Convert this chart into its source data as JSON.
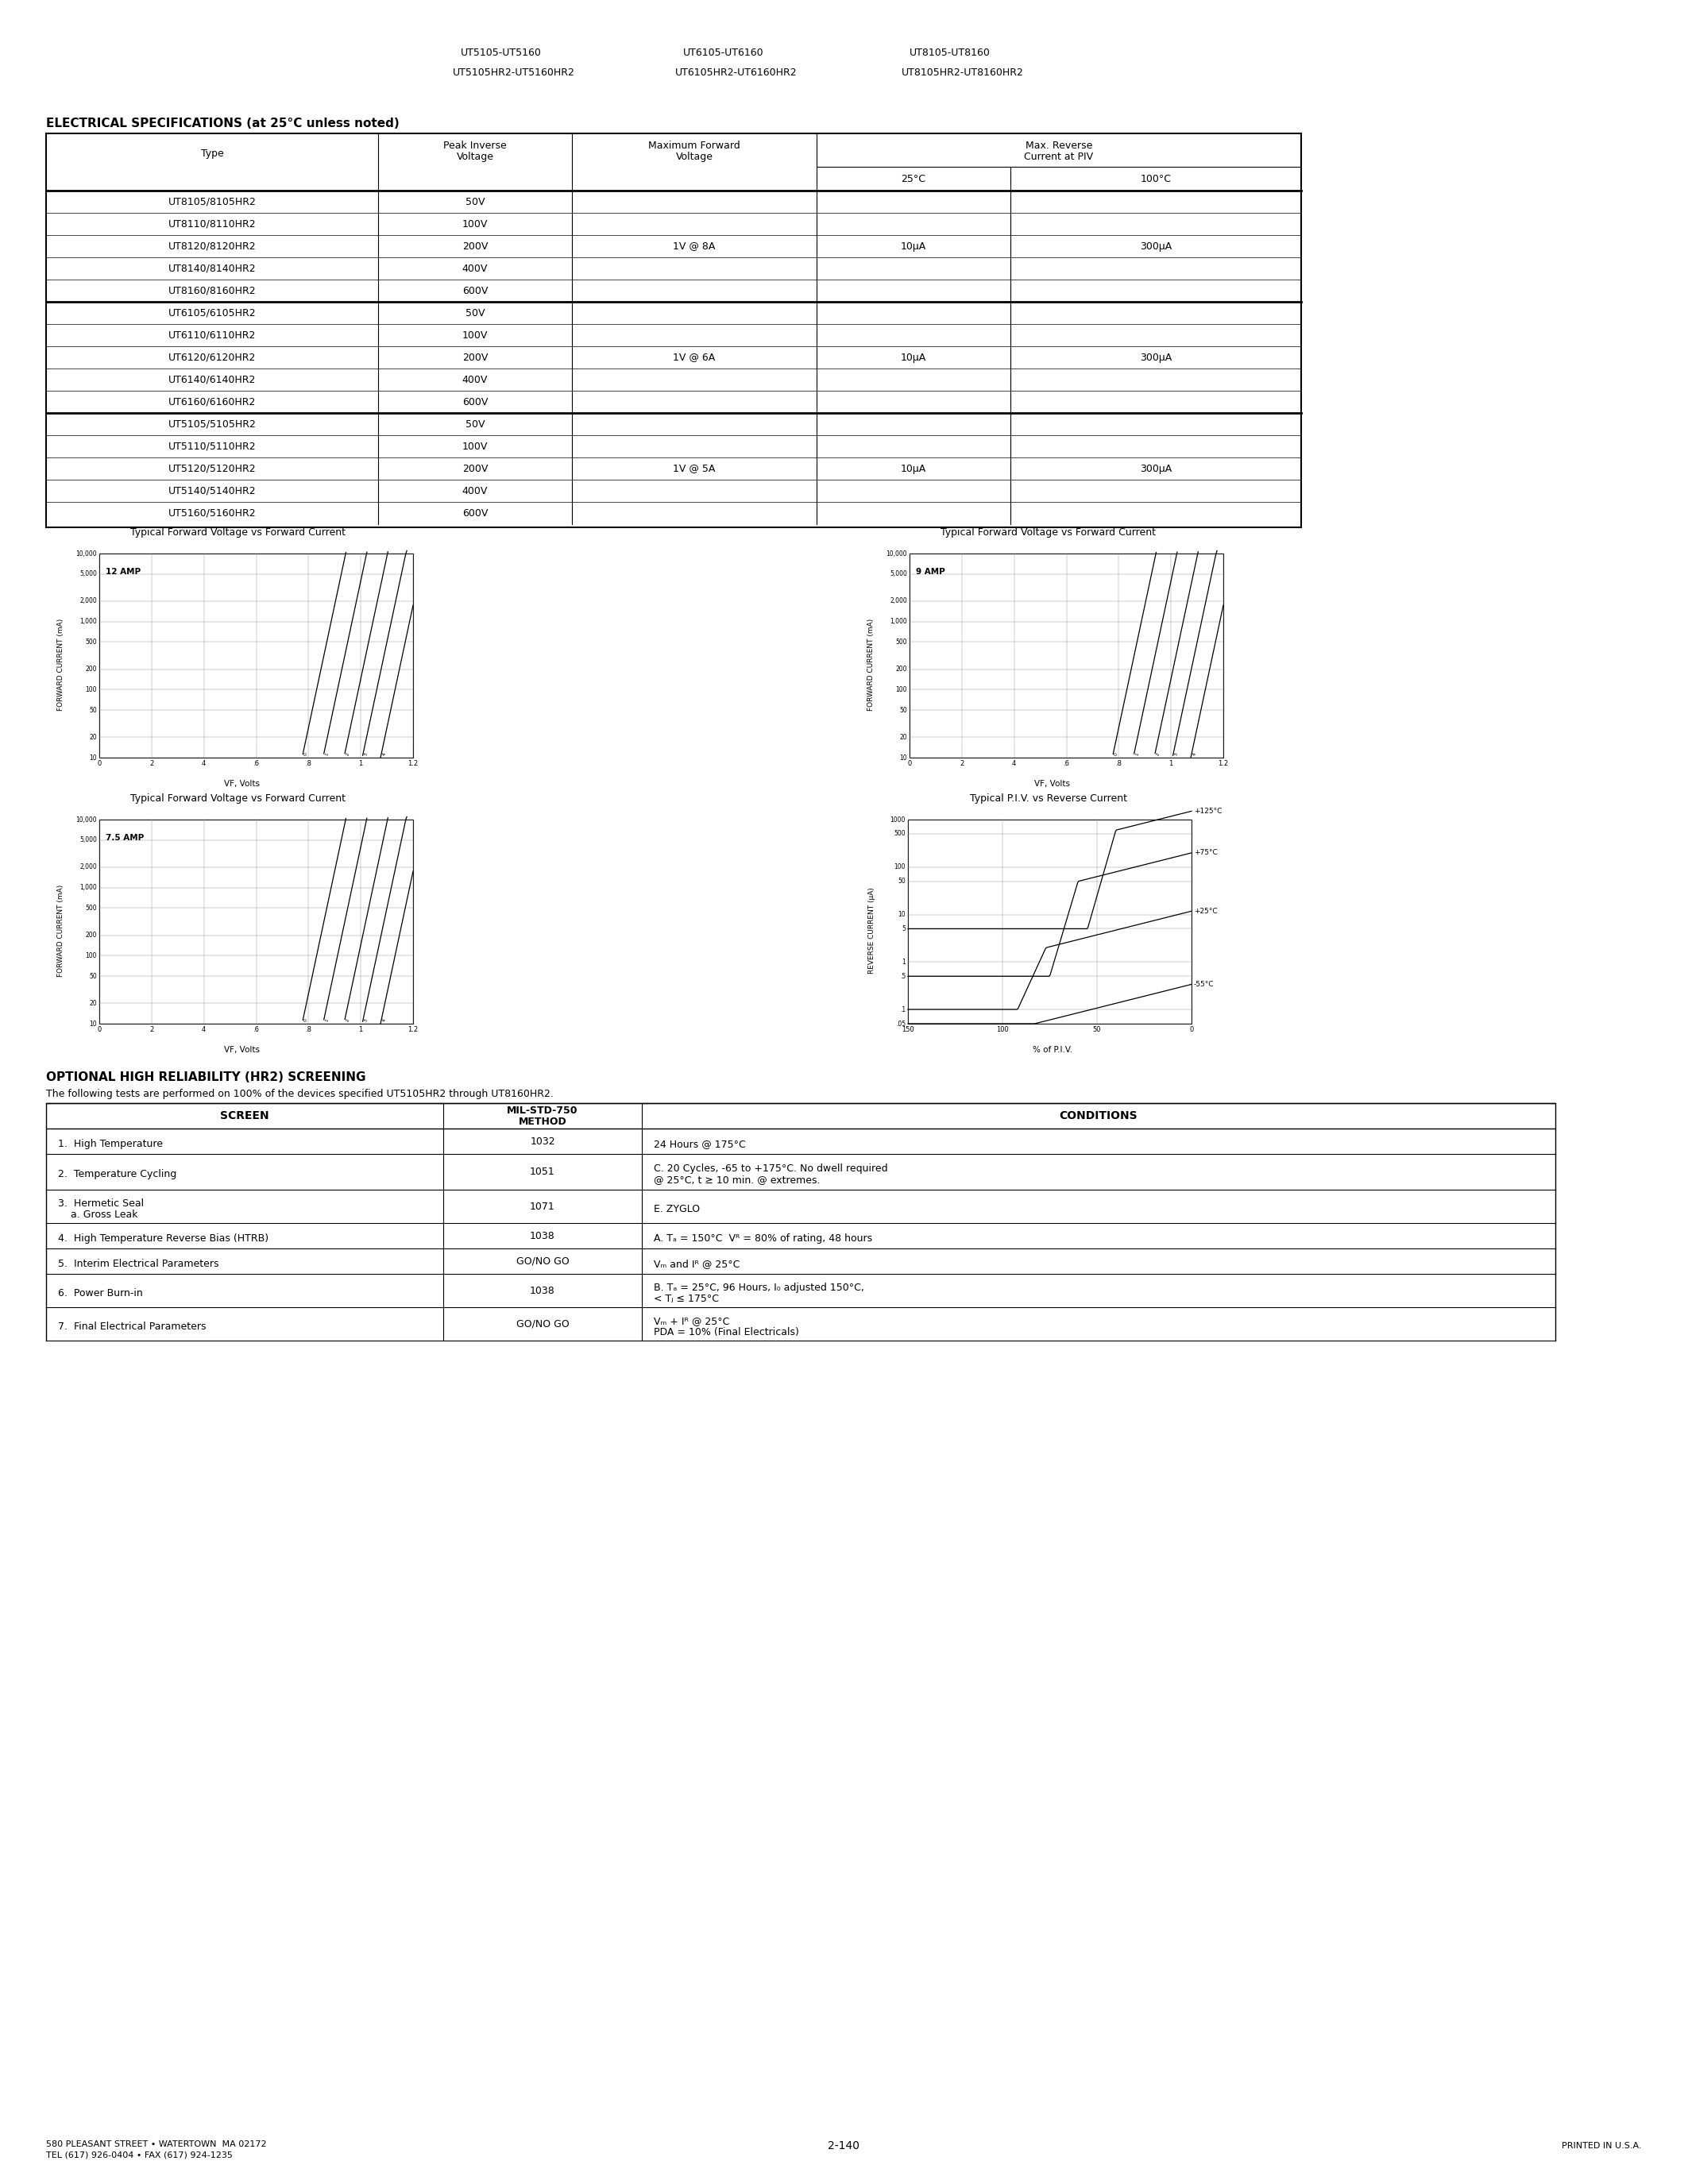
{
  "page_bg": "#ffffff",
  "header_items": [
    [
      "UT5105-UT5160",
      "UT6105-UT6160",
      "UT8105-UT8160"
    ],
    [
      "UT5105HR2-UT5160HR2",
      "UT6105HR2-UT6160HR2",
      "UT8105HR2-UT8160HR2"
    ]
  ],
  "elec_spec_title": "ELECTRICAL SPECIFICATIONS (at 25°C unless noted)",
  "table1_rows_group1": [
    [
      "UT8105/8105HR2",
      "50V"
    ],
    [
      "UT8110/8110HR2",
      "100V"
    ],
    [
      "UT8120/8120HR2",
      "200V"
    ],
    [
      "UT8140/8140HR2",
      "400V"
    ],
    [
      "UT8160/8160HR2",
      "600V"
    ]
  ],
  "table1_group1_fwd": "1V @ 8A",
  "table1_group1_25c": "10μA",
  "table1_group1_100c": "300μA",
  "table1_rows_group2": [
    [
      "UT6105/6105HR2",
      "50V"
    ],
    [
      "UT6110/6110HR2",
      "100V"
    ],
    [
      "UT6120/6120HR2",
      "200V"
    ],
    [
      "UT6140/6140HR2",
      "400V"
    ],
    [
      "UT6160/6160HR2",
      "600V"
    ]
  ],
  "table1_group2_fwd": "1V @ 6A",
  "table1_group2_25c": "10μA",
  "table1_group2_100c": "300μA",
  "table1_rows_group3": [
    [
      "UT5105/5105HR2",
      "50V"
    ],
    [
      "UT5110/5110HR2",
      "100V"
    ],
    [
      "UT5120/5120HR2",
      "200V"
    ],
    [
      "UT5140/5140HR2",
      "400V"
    ],
    [
      "UT5160/5160HR2",
      "600V"
    ]
  ],
  "table1_group3_fwd": "1V @ 5A",
  "table1_group3_25c": "10μA",
  "table1_group3_100c": "300μA",
  "graph_y_labels": [
    "10",
    "20",
    "50",
    "100",
    "200",
    "500",
    "1,000",
    "2,000",
    "5,000",
    "10,000"
  ],
  "graph_x_labels": [
    "0",
    "2",
    "4",
    ".6",
    ".8",
    "1",
    "1.2"
  ],
  "graph1_title": "Typical Forward Voltage vs Forward Current",
  "graph1_amp": "12 AMP",
  "graph2_title": "Typical Forward Voltage vs Forward Current",
  "graph2_amp": "9 AMP",
  "graph3_title": "Typical Forward Voltage vs Forward Current",
  "graph3_amp": "7.5 AMP",
  "graph4_title": "Typical P.I.V. vs Reverse Current",
  "graph4_y_labels": [
    ".05",
    ".1",
    ".5",
    "1",
    "5",
    "10",
    "50",
    "100",
    "500",
    "1000"
  ],
  "graph4_x_labels": [
    "150",
    "100",
    "50",
    "0"
  ],
  "graph4_temp_labels": [
    "-55°C",
    "+25°C",
    "+75°C",
    "+125°C"
  ],
  "optional_title": "OPTIONAL HIGH RELIABILITY (HR2) SCREENING",
  "optional_subtitle": "The following tests are performed on 100% of the devices specified UT5105HR2 through UT8160HR2.",
  "screen_rows": [
    [
      "1.  High Temperature",
      "1032",
      "24 Hours @ 175°C"
    ],
    [
      "2.  Temperature Cycling",
      "1051",
      "C. 20 Cycles, -65 to +175°C. No dwell required\n@ 25°C, t ≥ 10 min. @ extremes."
    ],
    [
      "3.  Hermetic Seal\n    a. Gross Leak",
      "1071",
      "E. ZYGLO"
    ],
    [
      "4.  High Temperature Reverse Bias (HTRB)",
      "1038",
      "A. Tₐ = 150°C  Vᴿ = 80% of rating, 48 hours"
    ],
    [
      "5.  Interim Electrical Parameters",
      "GO/NO GO",
      "Vₘ and Iᴿ @ 25°C"
    ],
    [
      "6.  Power Burn-in",
      "1038",
      "B. Tₐ = 25°C, 96 Hours, I₀ adjusted 150°C,\n< Tⱼ ≤ 175°C"
    ],
    [
      "7.  Final Electrical Parameters",
      "GO/NO GO",
      "Vₘ + Iᴿ @ 25°C\nPDA = 10% (Final Electricals)"
    ]
  ],
  "footer_left1": "580 PLEASANT STREET • WATERTOWN  MA 02172",
  "footer_left2": "TEL (617) 926-0404 • FAX (617) 924-1235",
  "footer_center": "2-140",
  "footer_right": "PRINTED IN U.S.A."
}
